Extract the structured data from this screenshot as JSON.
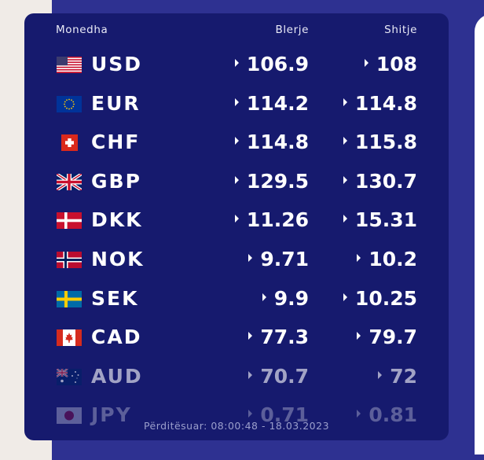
{
  "header": {
    "currency": "Monedha",
    "buy": "Blerje",
    "sell": "Shitje"
  },
  "rates": [
    {
      "code": "USD",
      "flag": "us-flag",
      "buy": "106.9",
      "sell": "108"
    },
    {
      "code": "EUR",
      "flag": "eu-flag",
      "buy": "114.2",
      "sell": "114.8"
    },
    {
      "code": "CHF",
      "flag": "ch-flag",
      "buy": "114.8",
      "sell": "115.8"
    },
    {
      "code": "GBP",
      "flag": "gb-flag",
      "buy": "129.5",
      "sell": "130.7"
    },
    {
      "code": "DKK",
      "flag": "dk-flag",
      "buy": "11.26",
      "sell": "15.31"
    },
    {
      "code": "NOK",
      "flag": "no-flag",
      "buy": "9.71",
      "sell": "10.2"
    },
    {
      "code": "SEK",
      "flag": "se-flag",
      "buy": "9.9",
      "sell": "10.25"
    },
    {
      "code": "CAD",
      "flag": "ca-flag",
      "buy": "77.3",
      "sell": "79.7"
    },
    {
      "code": "AUD",
      "flag": "au-flag",
      "buy": "70.7",
      "sell": "72"
    },
    {
      "code": "JPY",
      "flag": "jp-flag",
      "buy": "0.71",
      "sell": "0.81"
    }
  ],
  "footer": {
    "updated": "Përditësuar: 08:00:48 - 18.03.2023"
  },
  "colors": {
    "page_bg": "#f0ebe7",
    "section_bg": "#2e3191",
    "card_bg": "#161a6e",
    "text": "#ffffff",
    "muted": "#9b9fcc"
  }
}
